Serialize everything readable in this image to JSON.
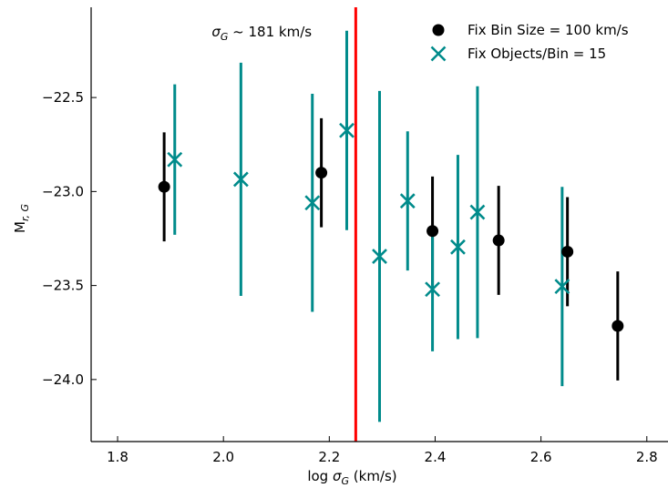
{
  "chart_data": {
    "type": "scatter",
    "title": "",
    "xlabel_prefix": "log ",
    "xlabel_symbol": "σ",
    "xlabel_sub": "G",
    "xlabel_suffix": " (km/s)",
    "ylabel_main": "M",
    "ylabel_sub": "r, G",
    "xlim": [
      1.75,
      2.84
    ],
    "ylim": [
      -24.33,
      -22.02
    ],
    "x_ticks": [
      1.8,
      2.0,
      2.2,
      2.4,
      2.6,
      2.8
    ],
    "x_tick_labels": [
      "1.8",
      "2.0",
      "2.2",
      "2.4",
      "2.6",
      "2.8"
    ],
    "y_ticks": [
      -22.5,
      -23.0,
      -23.5,
      -24.0
    ],
    "y_tick_labels": [
      "−22.5",
      "−23.0",
      "−23.5",
      "−24.0"
    ],
    "grid": false,
    "legend_position": "top-right",
    "vline": {
      "x": 2.25,
      "color": "#ff0000",
      "label_symbol": "σ",
      "label_sub": "G",
      "label_text": " ~  181 km/s"
    },
    "series": [
      {
        "name": "Fix Bin Size = 100 km/s",
        "marker": "circle",
        "color": "#000000",
        "points": [
          {
            "x": 1.888,
            "y": -22.975,
            "err": 0.29
          },
          {
            "x": 2.185,
            "y": -22.9,
            "err": 0.29
          },
          {
            "x": 2.395,
            "y": -23.21,
            "err": 0.29
          },
          {
            "x": 2.52,
            "y": -23.26,
            "err": 0.29
          },
          {
            "x": 2.65,
            "y": -23.32,
            "err": 0.29
          },
          {
            "x": 2.745,
            "y": -23.715,
            "err": 0.29
          }
        ]
      },
      {
        "name": "Fix Objects/Bin = 15",
        "marker": "x",
        "color": "#008b8b",
        "points": [
          {
            "x": 1.908,
            "y": -22.83,
            "err": 0.4
          },
          {
            "x": 2.033,
            "y": -22.935,
            "err": 0.62
          },
          {
            "x": 2.168,
            "y": -23.06,
            "err": 0.58
          },
          {
            "x": 2.233,
            "y": -22.675,
            "err": 0.53
          },
          {
            "x": 2.295,
            "y": -23.345,
            "err": 0.88
          },
          {
            "x": 2.348,
            "y": -23.05,
            "err": 0.37
          },
          {
            "x": 2.395,
            "y": -23.52,
            "err": 0.33
          },
          {
            "x": 2.443,
            "y": -23.295,
            "err": 0.49
          },
          {
            "x": 2.48,
            "y": -23.11,
            "err": 0.67
          },
          {
            "x": 2.64,
            "y": -23.505,
            "err": 0.53
          }
        ]
      }
    ]
  }
}
